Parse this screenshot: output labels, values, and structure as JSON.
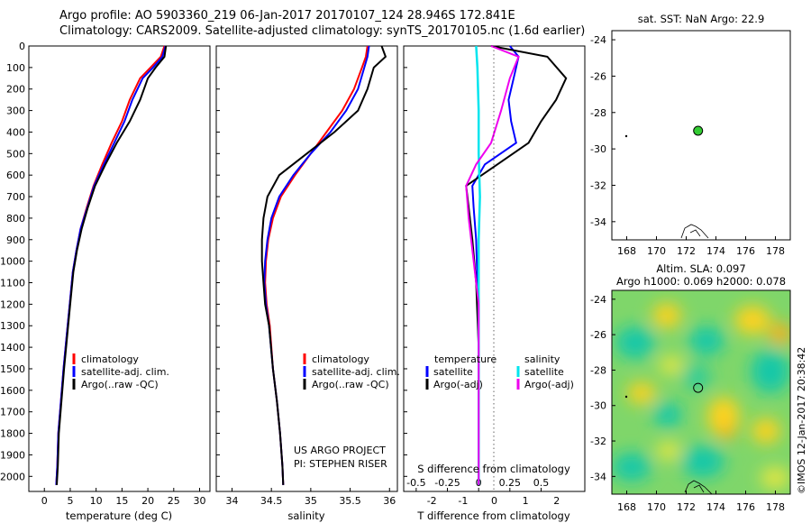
{
  "header": {
    "line1": "Argo profile: AO 5903360_219 06-Jan-2017 20170107_124 28.946S 172.841E",
    "line2": "Climatology: CARS2009. Satellite-adjusted climatology: synTS_20170105.nc (1.6d earlier)"
  },
  "colors": {
    "climatology": "#ff0000",
    "satellite": "#0000ff",
    "argo": "#000000",
    "salinity_sat": "#00e5ee",
    "salinity_argo": "#ee00ee",
    "sst_dot": "#33cc33"
  },
  "depth_ticks": [
    "0",
    "100",
    "200",
    "300",
    "400",
    "500",
    "600",
    "700",
    "800",
    "900",
    "1000",
    "1100",
    "1200",
    "1300",
    "1400",
    "1500",
    "1600",
    "1700",
    "1800",
    "1900",
    "2000"
  ],
  "panels": {
    "temperature": {
      "xlabel": "temperature (deg C)",
      "ticks": [
        "0",
        "5",
        "10",
        "15",
        "20",
        "25",
        "30"
      ],
      "legend": [
        "climatology",
        "satellite-adj. clim.",
        "Argo(..raw -QC)"
      ]
    },
    "salinity": {
      "xlabel": "salinity",
      "ticks": [
        "34",
        "34.5",
        "35",
        "35.5",
        "36"
      ],
      "legend": [
        "climatology",
        "satellite-adj. clim.",
        "Argo(..raw -QC)"
      ],
      "credit1": "US ARGO PROJECT",
      "credit2": "PI: STEPHEN RISER"
    },
    "difference": {
      "xlabel_top": "S difference from climatology",
      "xlabel_bottom": "T difference from climatology",
      "ticks": [
        "-0.5",
        "-0.25",
        "0",
        "0.25",
        "0.5"
      ],
      "ticks_lower": [
        "-2",
        "-1",
        "0",
        "1",
        "2"
      ],
      "leg_temp_title": "temperature",
      "leg_sal_title": "salinity",
      "leg_temp": [
        "satellite",
        "Argo(-adj)"
      ],
      "leg_sal": [
        "satellite",
        "Argo(-adj)"
      ]
    },
    "sst_map": {
      "title": "sat. SST: NaN Argo: 22.9",
      "yticks": [
        "-24",
        "-26",
        "-28",
        "-30",
        "-32",
        "-34"
      ],
      "xticks": [
        "168",
        "170",
        "172",
        "174",
        "176",
        "178"
      ]
    },
    "sla_map": {
      "title1": "Altim. SLA: 0.097",
      "title2": "Argo h1000: 0.069 h2000: 0.078",
      "yticks": [
        "-24",
        "-26",
        "-28",
        "-30",
        "-32",
        "-34"
      ],
      "xticks": [
        "168",
        "170",
        "172",
        "174",
        "176",
        "178"
      ],
      "credit": "©IMOS 12-Jan-2017 20:38:42"
    }
  },
  "chart_data": [
    {
      "type": "line",
      "title": "",
      "xlabel": "temperature (deg C)",
      "ylabel": "",
      "xlim": [
        -3,
        32
      ],
      "ylim": [
        2070,
        0
      ],
      "series": [
        {
          "name": "climatology",
          "x": [
            23.2,
            22.5,
            20.5,
            18.5,
            16.5,
            15.0,
            13.0,
            11.2,
            9.5,
            8.2,
            7.0,
            6.2,
            5.5,
            4.9,
            4.3,
            3.7,
            3.2,
            2.7,
            2.5,
            2.3
          ],
          "y": [
            0,
            50,
            100,
            150,
            250,
            350,
            450,
            550,
            650,
            750,
            850,
            950,
            1050,
            1200,
            1350,
            1500,
            1650,
            1800,
            1950,
            2040
          ]
        },
        {
          "name": "satellite-adj. clim.",
          "x": [
            23.4,
            22.8,
            21.0,
            19.0,
            17.0,
            15.5,
            13.5,
            11.5,
            9.6,
            8.3,
            7.0,
            6.2,
            5.5,
            4.9,
            4.3,
            3.7,
            3.2,
            2.7,
            2.5,
            2.3
          ],
          "y": [
            0,
            50,
            100,
            150,
            250,
            350,
            450,
            550,
            650,
            750,
            850,
            950,
            1050,
            1200,
            1350,
            1500,
            1650,
            1800,
            1950,
            2040
          ]
        },
        {
          "name": "Argo(..raw -QC)",
          "x": [
            23.5,
            23.2,
            21.5,
            20.0,
            18.5,
            16.5,
            14.0,
            11.8,
            9.8,
            8.4,
            7.2,
            6.3,
            5.6,
            5.0,
            4.4,
            3.8,
            3.3,
            2.8,
            2.6,
            2.4
          ],
          "y": [
            0,
            50,
            100,
            150,
            250,
            350,
            450,
            550,
            650,
            750,
            850,
            950,
            1050,
            1200,
            1350,
            1500,
            1650,
            1800,
            1950,
            2040
          ]
        }
      ]
    },
    {
      "type": "line",
      "title": "",
      "xlabel": "salinity",
      "ylabel": "",
      "xlim": [
        33.8,
        36.1
      ],
      "ylim": [
        2070,
        0
      ],
      "series": [
        {
          "name": "climatology",
          "x": [
            35.72,
            35.7,
            35.65,
            35.55,
            35.4,
            35.2,
            35.0,
            34.8,
            34.62,
            34.52,
            34.46,
            34.43,
            34.42,
            34.44,
            34.48,
            34.52,
            34.57,
            34.61,
            34.64,
            34.65
          ],
          "y": [
            0,
            50,
            100,
            200,
            300,
            400,
            500,
            600,
            700,
            800,
            900,
            1000,
            1100,
            1200,
            1300,
            1500,
            1650,
            1800,
            1950,
            2040
          ]
        },
        {
          "name": "satellite-adj. clim.",
          "x": [
            35.74,
            35.72,
            35.68,
            35.6,
            35.45,
            35.25,
            35.0,
            34.78,
            34.6,
            34.5,
            34.45,
            34.42,
            34.41,
            34.43,
            34.47,
            34.52,
            34.57,
            34.61,
            34.64,
            34.65
          ],
          "y": [
            0,
            50,
            100,
            200,
            300,
            400,
            500,
            600,
            700,
            800,
            900,
            1000,
            1100,
            1200,
            1300,
            1500,
            1650,
            1800,
            1950,
            2040
          ]
        },
        {
          "name": "Argo(..raw -QC)",
          "x": [
            35.9,
            35.95,
            35.8,
            35.72,
            35.6,
            35.3,
            34.95,
            34.6,
            34.45,
            34.4,
            34.38,
            34.38,
            34.4,
            34.42,
            34.47,
            34.52,
            34.57,
            34.61,
            34.64,
            34.65
          ],
          "y": [
            0,
            50,
            100,
            200,
            300,
            400,
            500,
            600,
            700,
            800,
            900,
            1000,
            1100,
            1200,
            1300,
            1500,
            1650,
            1800,
            1950,
            2040
          ]
        }
      ]
    },
    {
      "type": "line",
      "title": "",
      "xlabel": "S difference from climatology",
      "ylabel": "",
      "xlim": [
        -0.6,
        0.85
      ],
      "ylim": [
        2070,
        0
      ],
      "series": [
        {
          "name": "satellite",
          "x": [
            0.25,
            0.32,
            0.28,
            0.24,
            0.26,
            0.3,
            0.05,
            -0.05,
            -0.04,
            -0.02,
            -0.01,
            0.0,
            0.0,
            0.0
          ],
          "y": [
            0,
            50,
            150,
            250,
            350,
            450,
            550,
            650,
            750,
            900,
            1100,
            1400,
            1700,
            2040
          ]
        },
        {
          "name": "Argo(-adj)",
          "x": [
            0.1,
            0.55,
            0.7,
            0.62,
            0.5,
            0.4,
            0.15,
            -0.1,
            -0.08,
            -0.05,
            -0.02,
            0.0,
            0.0,
            0.0
          ],
          "y": [
            0,
            50,
            150,
            250,
            350,
            450,
            550,
            650,
            750,
            900,
            1100,
            1400,
            1700,
            2040
          ]
        },
        {
          "name": "satellite (salinity)",
          "x": [
            -0.02,
            -0.01,
            0.0,
            0.0,
            0.01,
            0.0,
            0.0,
            0.0,
            0.0
          ],
          "y": [
            0,
            100,
            300,
            500,
            700,
            900,
            1200,
            1600,
            2040
          ]
        },
        {
          "name": "Argo(-adj) (salinity)",
          "x": [
            0.1,
            0.32,
            0.25,
            0.18,
            0.1,
            -0.02,
            -0.1,
            -0.08,
            0.0,
            0.0
          ],
          "y": [
            0,
            50,
            150,
            300,
            450,
            550,
            650,
            800,
            1200,
            2040
          ]
        }
      ]
    },
    {
      "type": "scatter",
      "title": "sat. SST: NaN Argo: 22.9",
      "xlim": [
        167,
        179
      ],
      "ylim": [
        -35,
        -23.5
      ],
      "series": [
        {
          "name": "",
          "x": [
            172.8
          ],
          "y": [
            -29.0
          ]
        }
      ]
    },
    {
      "type": "heatmap",
      "title": "Altim. SLA: 0.097",
      "xlim": [
        167,
        179
      ],
      "ylim": [
        -35,
        -23.5
      ],
      "series": [
        {
          "name": "",
          "x": [
            172.8
          ],
          "y": [
            -29.0
          ]
        }
      ]
    }
  ]
}
